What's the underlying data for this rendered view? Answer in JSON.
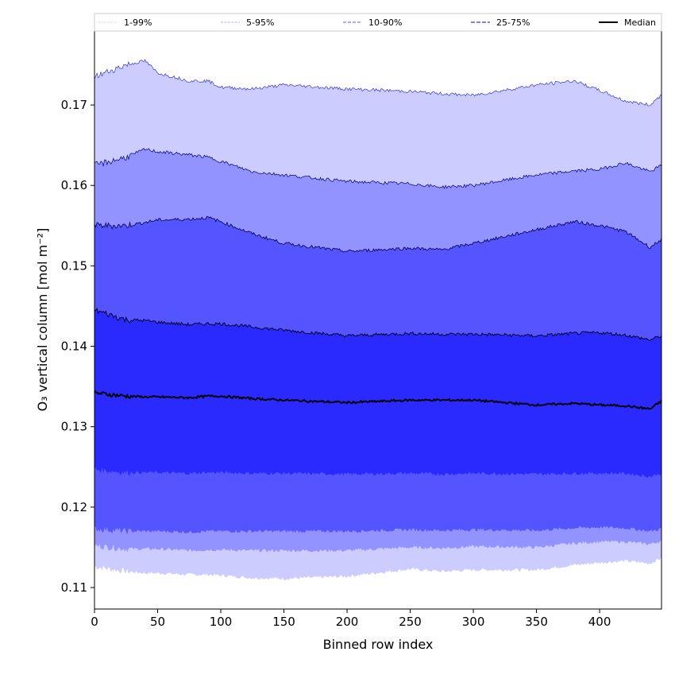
{
  "chart_data": {
    "type": "area",
    "title": "",
    "xlabel": "Binned row index",
    "ylabel": "O₃ vertical column [mol m⁻²]",
    "xlim": [
      0,
      449
    ],
    "ylim": [
      0.10733,
      0.1792
    ],
    "xticks": [
      0,
      50,
      100,
      150,
      200,
      250,
      300,
      350,
      400
    ],
    "yticks": [
      0.11,
      0.12,
      0.13,
      0.14,
      0.15,
      0.16,
      0.17
    ],
    "grid": false,
    "legend_position": "top",
    "legend": [
      {
        "label": "1-99%",
        "color": "#ccccff"
      },
      {
        "label": "5-95%",
        "color": "#9393ff"
      },
      {
        "label": "10-90%",
        "color": "#5555ff"
      },
      {
        "label": "25-75%",
        "color": "#2a2aff"
      },
      {
        "label": "Median",
        "color": "#000000"
      }
    ],
    "x": [
      0,
      25,
      40,
      50,
      75,
      90,
      100,
      125,
      150,
      200,
      250,
      275,
      300,
      350,
      380,
      400,
      420,
      440,
      449
    ],
    "series": [
      {
        "name": "p1",
        "values": [
          0.1126,
          0.112,
          0.1118,
          0.1118,
          0.1116,
          0.1116,
          0.1115,
          0.1112,
          0.1111,
          0.1114,
          0.1123,
          0.112,
          0.1122,
          0.1122,
          0.1128,
          0.1131,
          0.1133,
          0.113,
          0.1137
        ]
      },
      {
        "name": "p5",
        "values": [
          0.1152,
          0.1148,
          0.1148,
          0.1148,
          0.1146,
          0.1147,
          0.1147,
          0.1146,
          0.1146,
          0.1146,
          0.115,
          0.1149,
          0.1151,
          0.115,
          0.1155,
          0.1157,
          0.1157,
          0.1154,
          0.1158
        ]
      },
      {
        "name": "p10",
        "values": [
          0.1173,
          0.117,
          0.117,
          0.117,
          0.1169,
          0.117,
          0.117,
          0.117,
          0.117,
          0.117,
          0.1172,
          0.1171,
          0.1172,
          0.1171,
          0.1174,
          0.1175,
          0.1174,
          0.117,
          0.1173
        ]
      },
      {
        "name": "p25",
        "values": [
          0.1247,
          0.1243,
          0.1243,
          0.1243,
          0.1242,
          0.1243,
          0.1243,
          0.1242,
          0.1242,
          0.1241,
          0.1242,
          0.1241,
          0.1242,
          0.1241,
          0.1242,
          0.1242,
          0.1242,
          0.1238,
          0.1242
        ]
      },
      {
        "name": "Median",
        "values": [
          0.1342,
          0.1338,
          0.1337,
          0.1337,
          0.1336,
          0.1338,
          0.1338,
          0.1335,
          0.1333,
          0.133,
          0.1333,
          0.1333,
          0.1333,
          0.1327,
          0.1329,
          0.1327,
          0.1326,
          0.1322,
          0.1332
        ]
      },
      {
        "name": "p75",
        "values": [
          0.1445,
          0.1433,
          0.1432,
          0.143,
          0.1427,
          0.1428,
          0.1428,
          0.1424,
          0.142,
          0.1413,
          0.1416,
          0.1415,
          0.1415,
          0.1413,
          0.1416,
          0.1417,
          0.1414,
          0.1408,
          0.1413
        ]
      },
      {
        "name": "p90",
        "values": [
          0.155,
          0.155,
          0.1554,
          0.1557,
          0.1558,
          0.156,
          0.1555,
          0.154,
          0.1528,
          0.1518,
          0.1522,
          0.152,
          0.1528,
          0.1545,
          0.1555,
          0.155,
          0.1543,
          0.1523,
          0.1533
        ]
      },
      {
        "name": "p95",
        "values": [
          0.1625,
          0.1635,
          0.1645,
          0.1642,
          0.1638,
          0.1635,
          0.163,
          0.1617,
          0.1613,
          0.1605,
          0.1602,
          0.1598,
          0.16,
          0.1613,
          0.1618,
          0.162,
          0.1628,
          0.1617,
          0.1625
        ]
      },
      {
        "name": "p99",
        "values": [
          0.1735,
          0.175,
          0.1755,
          0.174,
          0.173,
          0.173,
          0.1722,
          0.172,
          0.1725,
          0.172,
          0.1717,
          0.1714,
          0.1712,
          0.1725,
          0.173,
          0.1718,
          0.1705,
          0.17,
          0.1713
        ]
      }
    ]
  }
}
